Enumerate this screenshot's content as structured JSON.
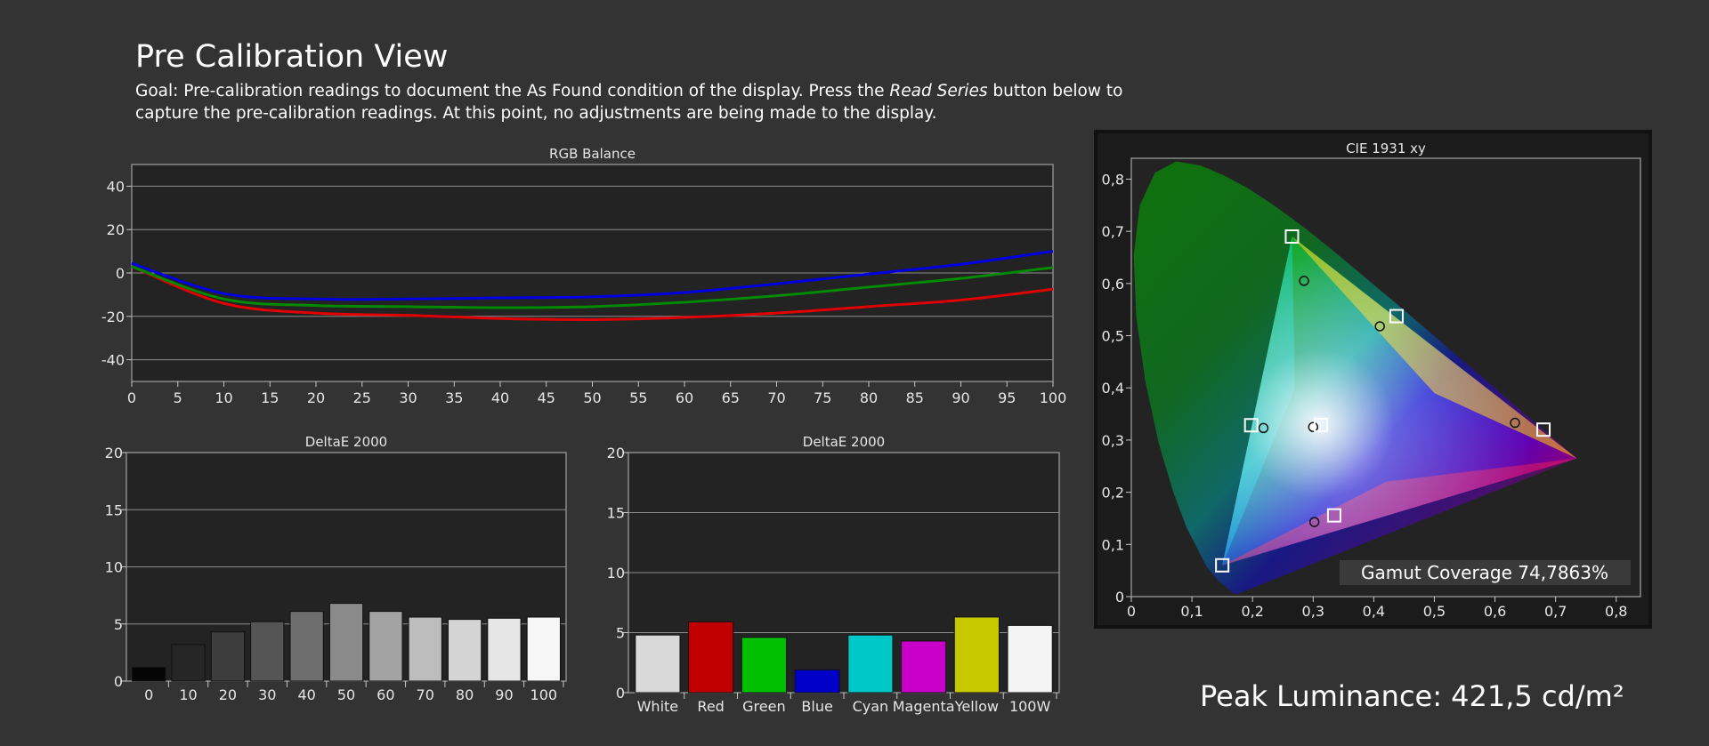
{
  "page": {
    "title": "Pre Calibration View",
    "goal_prefix": "Goal: Pre-calibration readings to document the As Found condition of the display. Press the ",
    "goal_emphasis": "Read Series",
    "goal_suffix": " button below to capture the pre-calibration readings. At this point, no adjustments are being made to the display.",
    "peak_luminance": "Peak Luminance: 421,5 cd/m²"
  },
  "colors": {
    "background": "#333333",
    "plot_background": "#232323",
    "red_series": "#e00000",
    "green_series": "#008a00",
    "blue_series": "#0000e0"
  },
  "chart_data": [
    {
      "id": "rgb-balance",
      "type": "line",
      "title": "RGB Balance",
      "x": [
        0,
        10,
        20,
        30,
        40,
        50,
        60,
        70,
        80,
        90,
        100
      ],
      "x_ticks": [
        0,
        5,
        10,
        15,
        20,
        25,
        30,
        35,
        40,
        45,
        50,
        55,
        60,
        65,
        70,
        75,
        80,
        85,
        90,
        95,
        100
      ],
      "y_ticks": [
        40,
        20,
        0,
        -20,
        -40
      ],
      "xlim": [
        0,
        100
      ],
      "ylim": [
        -50,
        50
      ],
      "grid": true,
      "series": [
        {
          "color": "#e00000",
          "values": [
            3,
            -14,
            -18.5,
            -19.5,
            -21,
            -21.5,
            -20.5,
            -18.5,
            -15.5,
            -12.5,
            -7.5
          ]
        },
        {
          "color": "#008a00",
          "values": [
            3,
            -12,
            -15,
            -15.5,
            -16,
            -15.5,
            -13.5,
            -10.5,
            -6.5,
            -2.5,
            2.5
          ]
        },
        {
          "color": "#0000e0",
          "values": [
            4.5,
            -9.5,
            -12,
            -12,
            -11.5,
            -11,
            -9,
            -5,
            -0.5,
            4,
            10
          ]
        }
      ]
    },
    {
      "id": "deltae-grayscale",
      "type": "bar",
      "title": "DeltaE 2000",
      "categories": [
        "0",
        "10",
        "20",
        "30",
        "40",
        "50",
        "60",
        "70",
        "80",
        "90",
        "100"
      ],
      "values": [
        1.2,
        3.2,
        4.3,
        5.2,
        6.1,
        6.8,
        6.1,
        5.6,
        5.4,
        5.5,
        5.6
      ],
      "bar_colors": [
        "#050505",
        "#262626",
        "#3d3d3d",
        "#555555",
        "#6e6e6e",
        "#8a8a8a",
        "#a3a3a3",
        "#bdbdbd",
        "#d4d4d4",
        "#e6e6e6",
        "#f7f7f7"
      ],
      "y_ticks": [
        0,
        5,
        10,
        15,
        20
      ],
      "ylim": [
        0,
        20
      ],
      "grid": true
    },
    {
      "id": "deltae-colors",
      "type": "bar",
      "title": "DeltaE 2000",
      "categories": [
        "White",
        "Red",
        "Green",
        "Blue",
        "Cyan",
        "Magenta",
        "Yellow",
        "100W"
      ],
      "values": [
        4.8,
        5.9,
        4.6,
        1.9,
        4.8,
        4.3,
        6.3,
        5.6
      ],
      "bar_colors": [
        "#d8d8d8",
        "#c00000",
        "#00c000",
        "#0000c8",
        "#00c8c8",
        "#c800c8",
        "#c8c800",
        "#f4f4f4"
      ],
      "y_ticks": [
        0,
        5,
        10,
        15,
        20
      ],
      "ylim": [
        0,
        20
      ],
      "grid": true
    },
    {
      "id": "cie-1931",
      "type": "scatter",
      "title": "CIE 1931 xy",
      "x_ticks": [
        "0",
        "0,1",
        "0,2",
        "0,3",
        "0,4",
        "0,5",
        "0,6",
        "0,7",
        "0,8"
      ],
      "y_ticks": [
        "0",
        "0,1",
        "0,2",
        "0,3",
        "0,4",
        "0,5",
        "0,6",
        "0,7",
        "0,8"
      ],
      "xlim": [
        0,
        0.84
      ],
      "ylim": [
        0,
        0.84
      ],
      "gamut_coverage": "Gamut Coverage 74,7863%",
      "targets": [
        {
          "x": 0.265,
          "y": 0.69
        },
        {
          "x": 0.68,
          "y": 0.32
        },
        {
          "x": 0.15,
          "y": 0.06
        },
        {
          "x": 0.4375,
          "y": 0.5375
        },
        {
          "x": 0.1978,
          "y": 0.3284
        },
        {
          "x": 0.3347,
          "y": 0.1557
        },
        {
          "x": 0.3127,
          "y": 0.329
        }
      ],
      "measured": [
        {
          "x": 0.285,
          "y": 0.605
        },
        {
          "x": 0.41,
          "y": 0.518
        },
        {
          "x": 0.633,
          "y": 0.333
        },
        {
          "x": 0.218,
          "y": 0.323
        },
        {
          "x": 0.302,
          "y": 0.143
        },
        {
          "x": 0.3,
          "y": 0.325,
          "white": true
        }
      ],
      "primaries_triangle": [
        {
          "x": 0.265,
          "y": 0.69
        },
        {
          "x": 0.735,
          "y": 0.265
        },
        {
          "x": 0.15,
          "y": 0.06
        }
      ]
    }
  ]
}
